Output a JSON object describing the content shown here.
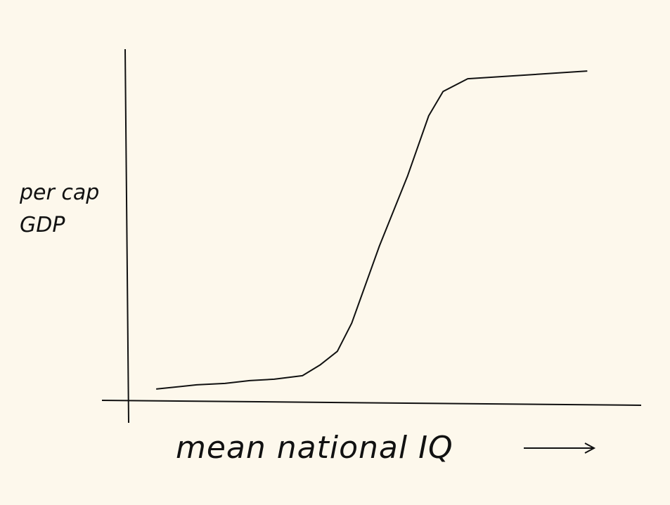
{
  "chart_data": {
    "type": "line",
    "x_label": "mean national IQ",
    "y_label": "per cap GDP",
    "x": [
      5.5,
      13.4,
      18.9,
      23.7,
      28.5,
      34.0,
      37.4,
      40.8,
      43.6,
      49.0,
      54.5,
      58.6,
      61.4,
      66.2,
      89.5
    ],
    "values": [
      3.6,
      4.8,
      5.2,
      6.0,
      6.4,
      7.4,
      10.4,
      14.3,
      22.3,
      44.2,
      64.1,
      81.1,
      88.0,
      91.6,
      93.8
    ],
    "color": "#111111",
    "xlim": [
      0,
      100
    ],
    "ylim": [
      0,
      100
    ]
  }
}
